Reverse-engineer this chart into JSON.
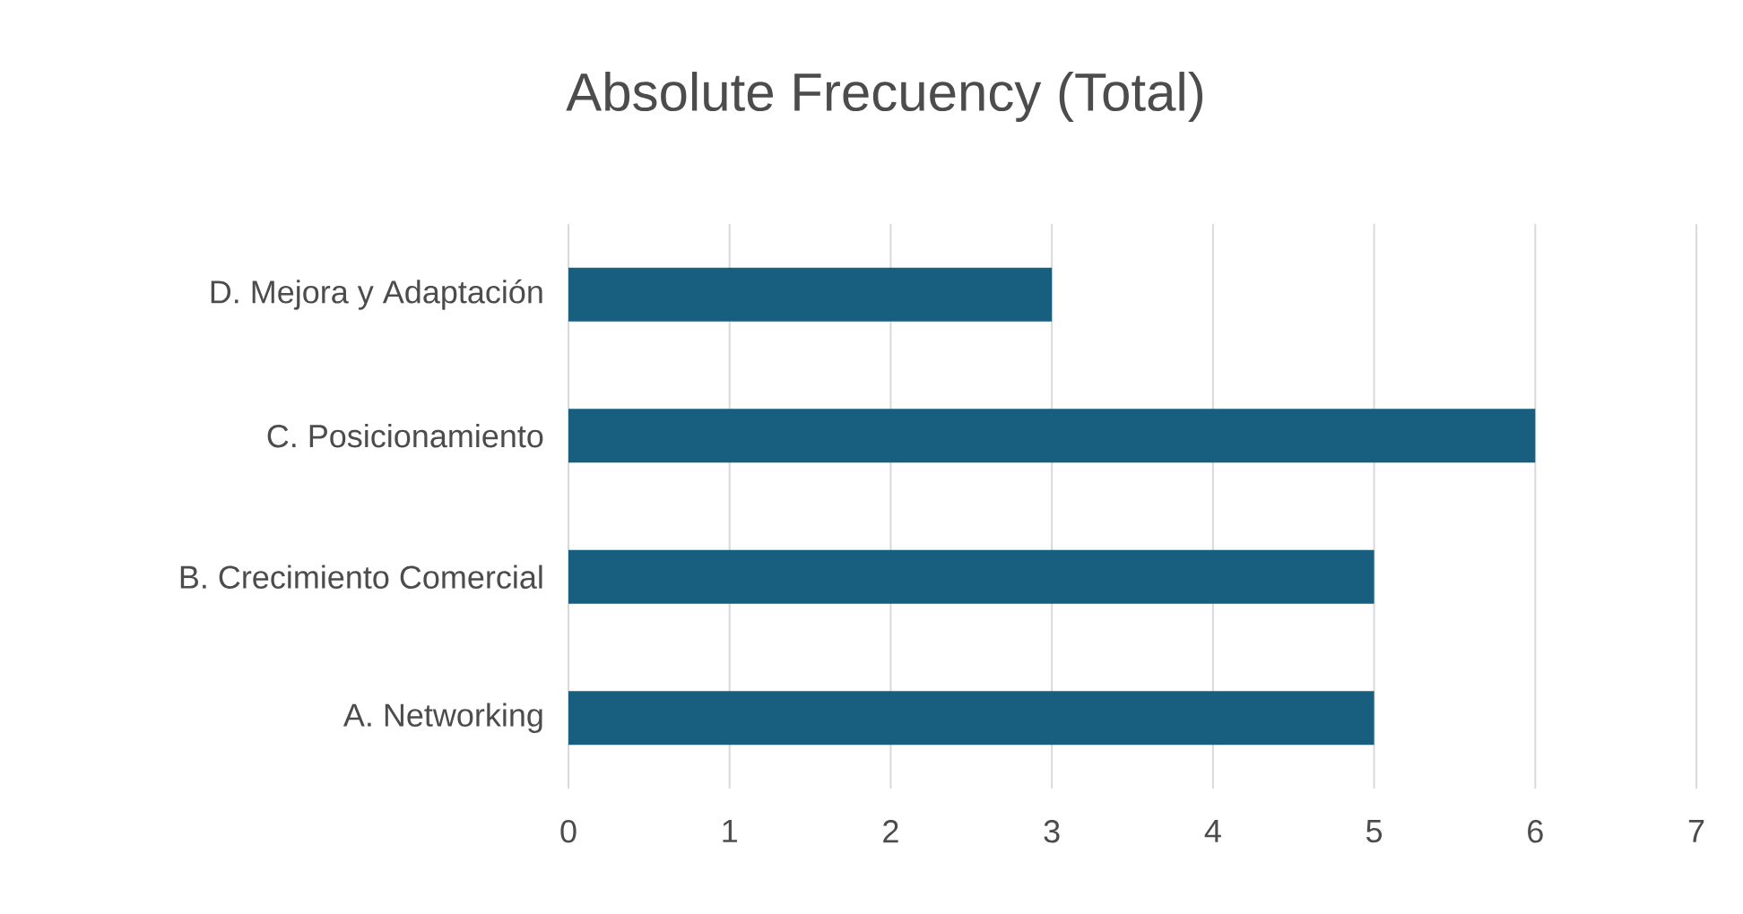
{
  "chart_data": {
    "type": "bar",
    "orientation": "horizontal",
    "title": "Absolute Frecuency (Total)",
    "categories": [
      "D. Mejora y Adaptación",
      "C. Posicionamiento",
      "B. Crecimiento Comercial",
      "A. Networking"
    ],
    "values": [
      3,
      6,
      5,
      5
    ],
    "color": "#175e7f",
    "xlim": [
      0,
      7
    ],
    "xticks": [
      0,
      1,
      2,
      3,
      4,
      5,
      6,
      7
    ],
    "grid": "x"
  }
}
